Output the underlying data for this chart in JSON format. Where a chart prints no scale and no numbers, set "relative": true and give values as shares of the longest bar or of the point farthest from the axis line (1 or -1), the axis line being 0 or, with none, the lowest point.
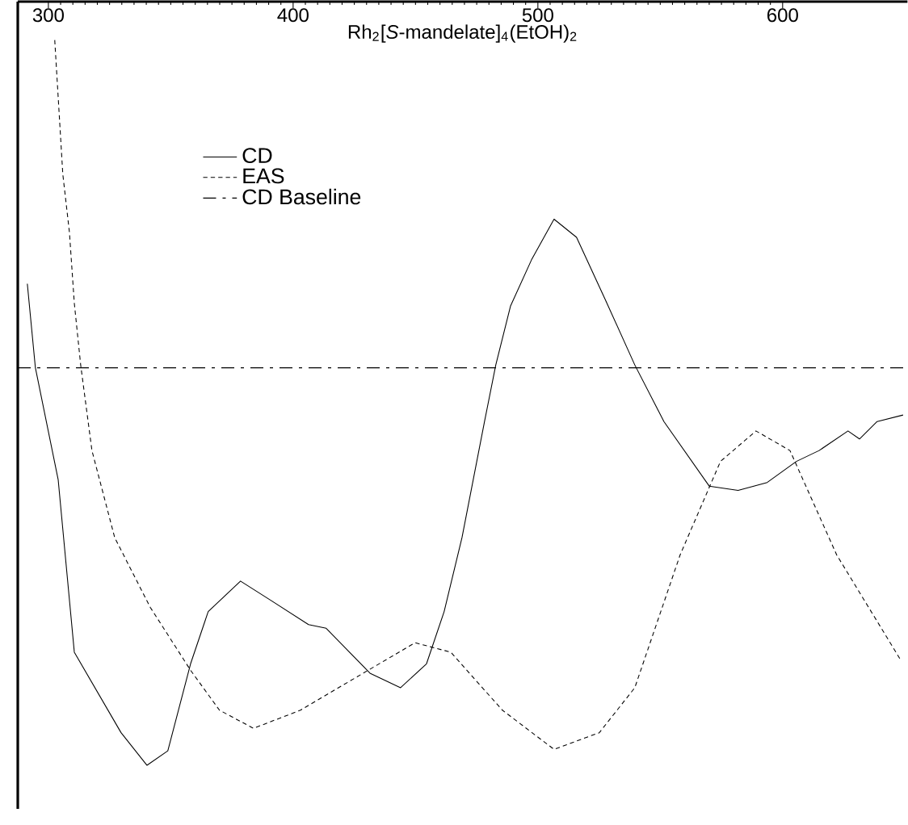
{
  "chart_data": {
    "type": "line",
    "title": "Rh$_{2}$[*S*-mandelate]$_{4}$(EtOH)$_{2}$",
    "relative": true,
    "xlim": [
      287.5,
      651
    ],
    "xticks": [
      300,
      400,
      500,
      600
    ],
    "legend": "top left",
    "grid": false,
    "series": [
      {
        "name": "CD",
        "color": "#000000",
        "line_style": "solid",
        "x": [
          291.4,
          294.7,
          304.0,
          310.6,
          329.7,
          340.3,
          348.8,
          358.1,
          365.3,
          378.5,
          391.1,
          406.3,
          413.5,
          431.4,
          443.9,
          454.5,
          461.7,
          469.0,
          478.2,
          482.8,
          488.8,
          497.4,
          506.6,
          515.8,
          527.7,
          539.6,
          551.5,
          570.0,
          581.8,
          593.7,
          605.6,
          614.9,
          626.7,
          631.4,
          638.6,
          649.2
        ],
        "values": [
          0.664,
          0.548,
          0.394,
          0.156,
          0.045,
          0,
          0.02,
          0.14,
          0.212,
          0.254,
          0.227,
          0.194,
          0.189,
          0.127,
          0.107,
          0.14,
          0.212,
          0.314,
          0.474,
          0.552,
          0.633,
          0.697,
          0.753,
          0.728,
          0.641,
          0.552,
          0.474,
          0.385,
          0.379,
          0.39,
          0.419,
          0.434,
          0.461,
          0.45,
          0.474,
          0.483
        ]
      },
      {
        "name": "EAS",
        "color": "#000000",
        "line_style": "dashed",
        "x": [
          302.6,
          305.9,
          308.6,
          310.6,
          313.2,
          317.8,
          327.1,
          341.6,
          358.1,
          369.9,
          383.8,
          403.0,
          426.1,
          449.8,
          464.4,
          485.5,
          506.6,
          525.1,
          539.6,
          558.1,
          574.6,
          589.1,
          603.0,
          622.1,
          647.9
        ],
        "values": [
          1,
          0.815,
          0.735,
          0.637,
          0.552,
          0.434,
          0.314,
          0.218,
          0.131,
          0.076,
          0.051,
          0.076,
          0.122,
          0.169,
          0.156,
          0.076,
          0.022,
          0.045,
          0.107,
          0.29,
          0.419,
          0.461,
          0.434,
          0.29,
          0.147
        ]
      }
    ],
    "ref_lines": [
      {
        "axis": "y",
        "value": 0.548,
        "label": "CD Baseline",
        "color": "#000000",
        "line_style": "dashdot"
      }
    ]
  }
}
